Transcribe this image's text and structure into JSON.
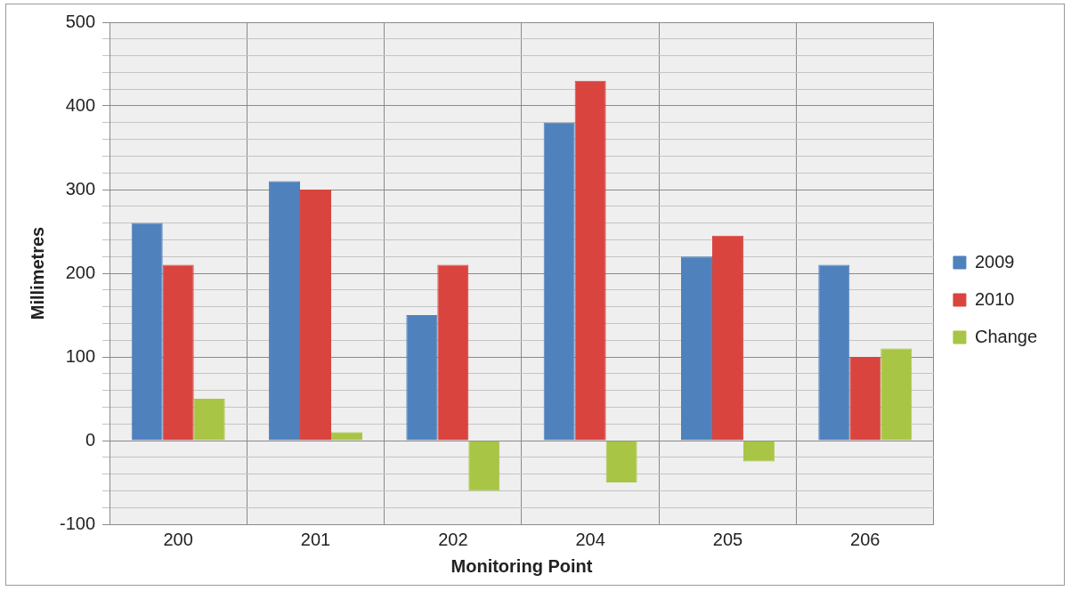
{
  "chart_data": {
    "type": "bar",
    "xlabel": "Monitoring Point",
    "ylabel": "Millimetres",
    "categories": [
      "200",
      "201",
      "202",
      "204",
      "205",
      "206"
    ],
    "series": [
      {
        "name": "2009",
        "color": "#4f81bd",
        "values": [
          260,
          310,
          150,
          380,
          220,
          210
        ]
      },
      {
        "name": "2010",
        "color": "#d9443f",
        "values": [
          210,
          300,
          210,
          430,
          245,
          100
        ]
      },
      {
        "name": "Change",
        "color": "#a8c545",
        "values": [
          50,
          10,
          -60,
          -50,
          -25,
          110
        ]
      }
    ],
    "ylim": [
      -100,
      500
    ],
    "yticks": [
      -100,
      {
        "value": -80,
        "label": null
      },
      {
        "value": -60,
        "label": null
      },
      {
        "value": -40,
        "label": null
      },
      {
        "value": -20,
        "label": null
      },
      0,
      {
        "value": 20,
        "label": null
      },
      {
        "value": 40,
        "label": null
      },
      {
        "value": 60,
        "label": null
      },
      {
        "value": 80,
        "label": null
      },
      100,
      {
        "value": 120,
        "label": null
      },
      {
        "value": 140,
        "label": null
      },
      {
        "value": 160,
        "label": null
      },
      {
        "value": 180,
        "label": null
      },
      200,
      {
        "value": 220,
        "label": null
      },
      {
        "value": 240,
        "label": null
      },
      {
        "value": 260,
        "label": null
      },
      {
        "value": 280,
        "label": null
      },
      300,
      {
        "value": 320,
        "label": null
      },
      {
        "value": 340,
        "label": null
      },
      {
        "value": 360,
        "label": null
      },
      {
        "value": 380,
        "label": null
      },
      400,
      {
        "value": 420,
        "label": null
      },
      {
        "value": 440,
        "label": null
      },
      {
        "value": 460,
        "label": null
      },
      {
        "value": 480,
        "label": null
      },
      500
    ],
    "grid": true,
    "legend": "right"
  }
}
